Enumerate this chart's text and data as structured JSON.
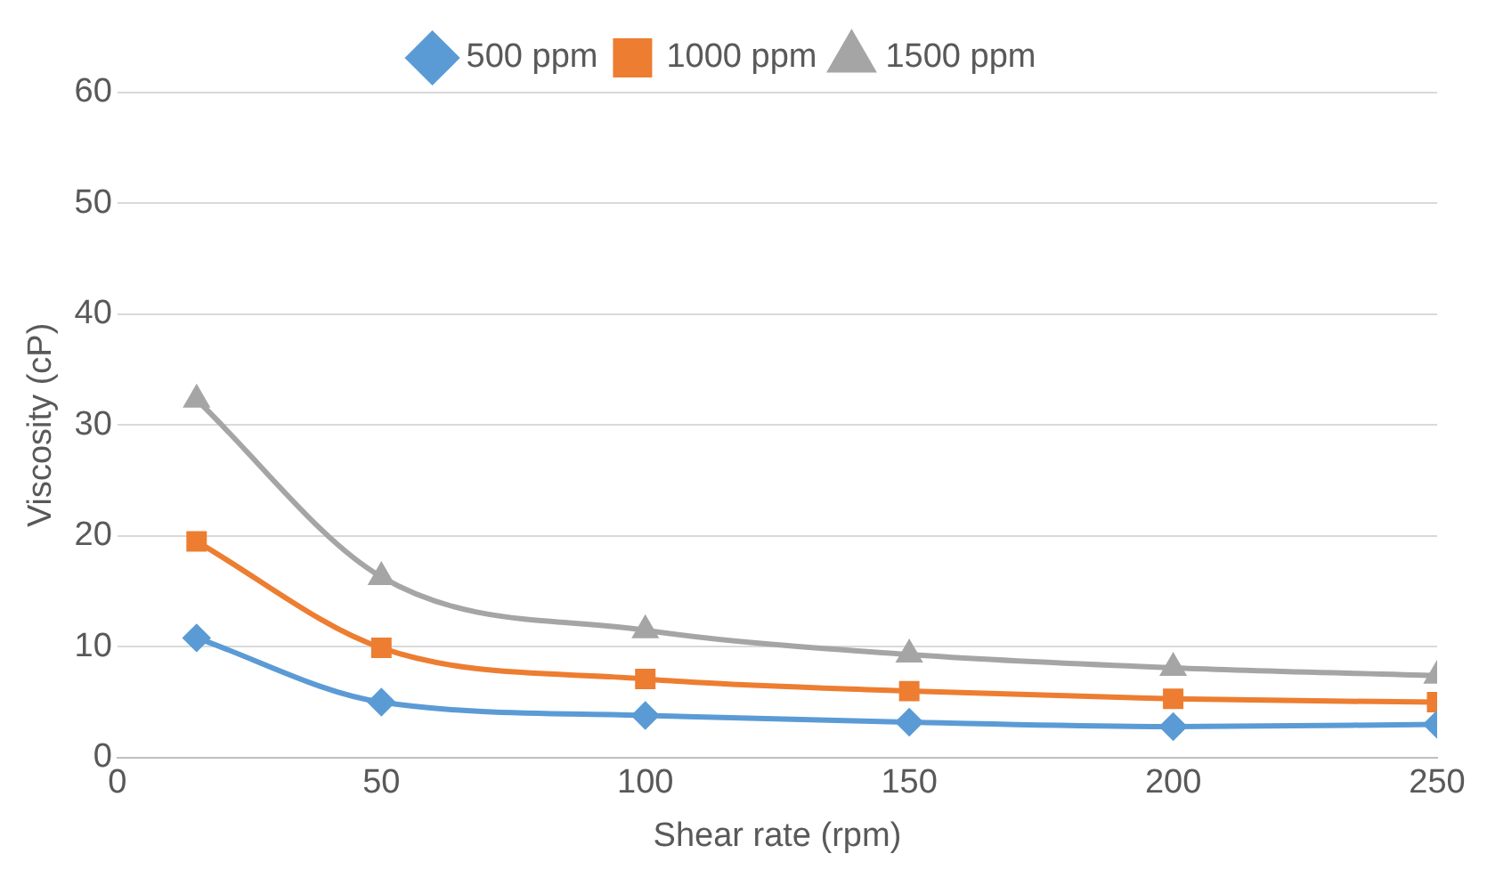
{
  "chart_data": {
    "type": "line",
    "xlabel": "Shear rate (rpm)",
    "ylabel": "Viscosity (cP)",
    "x": [
      15,
      50,
      100,
      150,
      200,
      250
    ],
    "series": [
      {
        "name": "500 ppm",
        "color": "#5b9bd5",
        "marker": "diamond",
        "values": [
          10.8,
          5.0,
          3.8,
          3.2,
          2.8,
          3.0
        ]
      },
      {
        "name": "1000 ppm",
        "color": "#ed7d31",
        "marker": "square",
        "values": [
          19.5,
          9.9,
          7.1,
          6.0,
          5.3,
          5.0
        ]
      },
      {
        "name": "1500 ppm",
        "color": "#a5a5a5",
        "marker": "triangle",
        "values": [
          32.3,
          16.3,
          11.5,
          9.3,
          8.1,
          7.4
        ]
      }
    ],
    "xlim": [
      0,
      250
    ],
    "xticks": [
      0,
      50,
      100,
      150,
      200,
      250
    ],
    "ylim": [
      0,
      60
    ],
    "yticks": [
      0,
      10,
      20,
      30,
      40,
      50,
      60
    ],
    "grid": "y",
    "legend": "top",
    "line_style": "solid"
  }
}
